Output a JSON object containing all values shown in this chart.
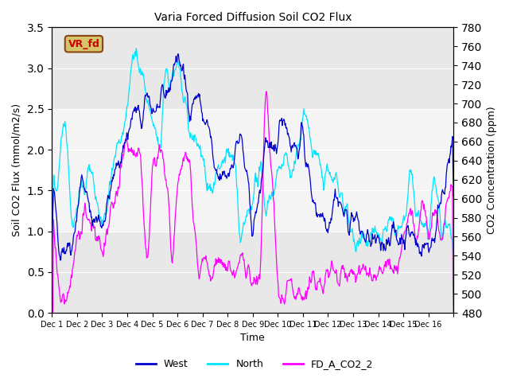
{
  "title": "Varia Forced Diffusion Soil CO2 Flux",
  "xlabel": "Time",
  "ylabel_left": "Soil CO2 Flux (mmol/m2/s)",
  "ylabel_right": "CO2 Concentration (ppm)",
  "ylim_left": [
    0.0,
    3.5
  ],
  "ylim_right": [
    480,
    780
  ],
  "shade_band": [
    1.0,
    2.5
  ],
  "label_box_text": "VR_fd",
  "label_box_bg": "#d4c56a",
  "label_box_edge": "#8B4513",
  "label_box_text_color": "#cc0000",
  "line_west_color": "#0000cd",
  "line_north_color": "#00e5ff",
  "line_co2_color": "#ff00ff",
  "legend_labels": [
    "West",
    "North",
    "FD_A_CO2_2"
  ],
  "xtick_positions": [
    0,
    1,
    2,
    3,
    4,
    5,
    6,
    7,
    8,
    9,
    10,
    11,
    12,
    13,
    14,
    15,
    16
  ],
  "xtick_labels": [
    "Dec 1",
    "Dec 2",
    "Dec 3",
    "Dec 4",
    "Dec 5",
    "Dec 6",
    "Dec 7",
    "Dec 8",
    "Dec 9",
    "Dec 10",
    "Dec 11",
    "Dec 12",
    "Dec 13",
    "Dec 14",
    "Dec 15",
    "Dec 16",
    ""
  ],
  "n_days": 16,
  "pts_per_day": 48,
  "axes_bg": "#e8e8e8"
}
